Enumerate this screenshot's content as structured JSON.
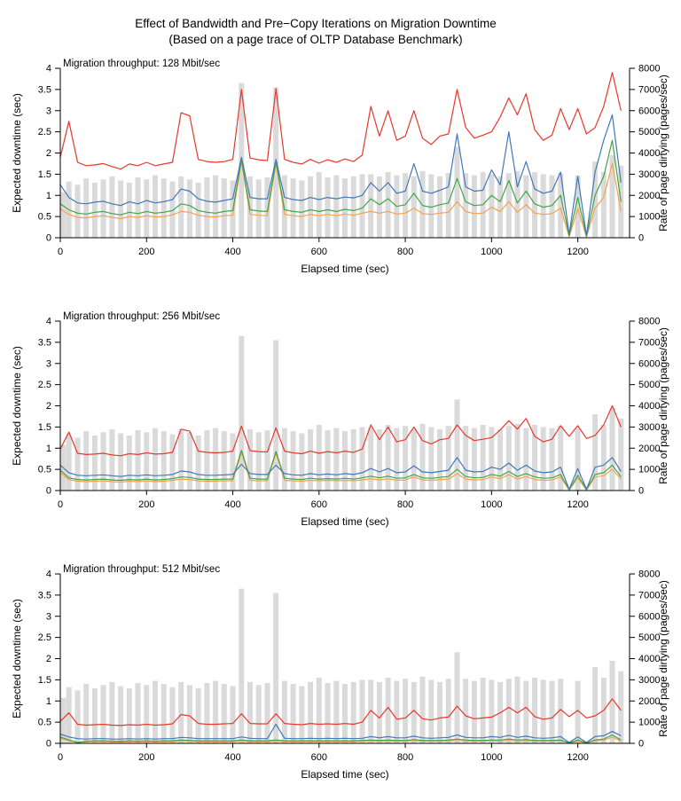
{
  "title": {
    "line1": "Effect of Bandwidth and Pre−Copy Iterations on Migration Downtime",
    "line2": "(Based on a page trace of OLTP Database Benchmark)"
  },
  "colors": {
    "red": "#e8372c",
    "blue": "#4278b6",
    "green": "#41a648",
    "orange": "#f7a14c",
    "bars": "#dadada",
    "axis": "#000000"
  },
  "chart_data": {
    "type": "line+bar",
    "xlabel": "Elapsed time (sec)",
    "ylabel_left": "Expected downtime (sec)",
    "ylabel_right": "Rate of page dirtying (pages/sec)",
    "xlim": [
      0,
      1320
    ],
    "ylim_left": [
      0,
      4
    ],
    "ylim_right": [
      0,
      8000
    ],
    "xticks": [
      0,
      200,
      400,
      600,
      800,
      1000,
      1200
    ],
    "yticks_left": [
      0,
      0.5,
      1,
      1.5,
      2,
      2.5,
      3,
      3.5,
      4
    ],
    "yticks_right": [
      0,
      1000,
      2000,
      3000,
      4000,
      5000,
      6000,
      7000,
      8000
    ],
    "grid": "off",
    "legend": "none",
    "x": [
      0,
      20,
      40,
      60,
      80,
      100,
      120,
      140,
      160,
      180,
      200,
      220,
      240,
      260,
      280,
      300,
      320,
      340,
      360,
      380,
      400,
      420,
      440,
      460,
      480,
      500,
      520,
      540,
      560,
      580,
      600,
      620,
      640,
      660,
      680,
      700,
      720,
      740,
      760,
      780,
      800,
      820,
      840,
      860,
      880,
      900,
      920,
      940,
      960,
      980,
      1000,
      1020,
      1040,
      1060,
      1080,
      1100,
      1120,
      1140,
      1160,
      1180,
      1200,
      1220,
      1240,
      1260,
      1280,
      1300
    ],
    "bars": {
      "name": "page-dirty-rate",
      "axis": "right",
      "values": [
        2150,
        2650,
        2500,
        2800,
        2600,
        2750,
        2900,
        2700,
        2600,
        2850,
        2750,
        2950,
        2800,
        2650,
        2900,
        2750,
        2600,
        2850,
        2950,
        2800,
        2700,
        7300,
        2900,
        2750,
        2850,
        7100,
        2950,
        2800,
        2700,
        2900,
        3100,
        2850,
        2950,
        2800,
        2900,
        3000,
        3000,
        2900,
        3100,
        2950,
        3050,
        2900,
        3150,
        3000,
        2900,
        3050,
        4300,
        3050,
        2950,
        3100,
        3000,
        2900,
        3050,
        3150,
        2950,
        3100,
        3000,
        2950,
        3050,
        0,
        2950,
        0,
        3600,
        3100,
        3900,
        3400
      ]
    },
    "panels": [
      {
        "label": "Migration throughput: 128 Mbit/sec",
        "series": [
          {
            "name": "red",
            "values": [
              1.9,
              2.75,
              1.78,
              1.7,
              1.72,
              1.75,
              1.68,
              1.62,
              1.74,
              1.7,
              1.78,
              1.7,
              1.74,
              1.78,
              2.95,
              2.88,
              1.85,
              1.8,
              1.78,
              1.8,
              1.85,
              3.5,
              1.88,
              1.84,
              1.82,
              3.52,
              1.85,
              1.78,
              1.74,
              1.85,
              1.76,
              1.84,
              1.78,
              1.86,
              1.8,
              1.95,
              3.1,
              2.4,
              3.0,
              2.3,
              2.4,
              3.0,
              2.35,
              2.2,
              2.4,
              2.45,
              3.5,
              2.6,
              2.35,
              2.42,
              2.5,
              2.85,
              3.3,
              2.9,
              3.4,
              2.55,
              2.3,
              2.42,
              3.05,
              2.55,
              3.05,
              2.45,
              2.6,
              3.1,
              3.9,
              3.0
            ]
          },
          {
            "name": "blue",
            "values": [
              1.25,
              0.95,
              0.82,
              0.8,
              0.84,
              0.86,
              0.8,
              0.76,
              0.85,
              0.8,
              0.88,
              0.82,
              0.85,
              0.9,
              1.15,
              1.1,
              0.92,
              0.86,
              0.84,
              0.88,
              0.92,
              1.9,
              0.95,
              0.92,
              0.92,
              1.85,
              0.95,
              0.9,
              0.88,
              0.95,
              0.9,
              0.95,
              0.92,
              0.96,
              0.94,
              1.0,
              1.3,
              1.1,
              1.3,
              1.05,
              1.1,
              1.75,
              1.1,
              1.05,
              1.12,
              1.2,
              2.45,
              1.2,
              1.1,
              1.12,
              1.6,
              1.25,
              2.5,
              1.2,
              1.8,
              1.15,
              1.05,
              1.1,
              1.55,
              0.08,
              1.45,
              0.05,
              1.55,
              2.3,
              2.9,
              1.3
            ]
          },
          {
            "name": "green",
            "values": [
              0.8,
              0.66,
              0.58,
              0.56,
              0.6,
              0.62,
              0.57,
              0.54,
              0.6,
              0.57,
              0.62,
              0.58,
              0.6,
              0.64,
              0.8,
              0.76,
              0.64,
              0.6,
              0.58,
              0.62,
              0.64,
              1.85,
              0.66,
              0.63,
              0.62,
              1.8,
              0.66,
              0.62,
              0.6,
              0.66,
              0.62,
              0.66,
              0.62,
              0.67,
              0.64,
              0.7,
              0.92,
              0.78,
              0.92,
              0.74,
              0.78,
              1.05,
              0.76,
              0.72,
              0.78,
              0.82,
              1.4,
              0.85,
              0.76,
              0.78,
              1.0,
              0.85,
              1.35,
              0.82,
              1.1,
              0.8,
              0.72,
              0.76,
              1.0,
              0.05,
              0.95,
              0.03,
              1.0,
              1.45,
              2.3,
              0.85
            ]
          },
          {
            "name": "orange",
            "values": [
              0.68,
              0.55,
              0.48,
              0.47,
              0.5,
              0.52,
              0.48,
              0.45,
              0.5,
              0.48,
              0.52,
              0.49,
              0.5,
              0.54,
              0.62,
              0.6,
              0.53,
              0.5,
              0.49,
              0.52,
              0.53,
              1.8,
              0.55,
              0.53,
              0.52,
              1.75,
              0.55,
              0.52,
              0.5,
              0.55,
              0.52,
              0.55,
              0.52,
              0.56,
              0.53,
              0.58,
              0.62,
              0.58,
              0.62,
              0.56,
              0.58,
              0.7,
              0.57,
              0.55,
              0.58,
              0.6,
              0.85,
              0.62,
              0.57,
              0.58,
              0.72,
              0.62,
              0.85,
              0.6,
              0.78,
              0.58,
              0.55,
              0.57,
              0.7,
              0.02,
              0.68,
              0.02,
              0.7,
              0.95,
              1.75,
              0.62
            ]
          }
        ]
      },
      {
        "label": "Migration throughput: 256 Mbit/sec",
        "series": [
          {
            "name": "red",
            "values": [
              0.98,
              1.38,
              0.88,
              0.85,
              0.86,
              0.88,
              0.84,
              0.82,
              0.87,
              0.85,
              0.89,
              0.86,
              0.87,
              0.9,
              1.45,
              1.4,
              0.93,
              0.9,
              0.89,
              0.9,
              0.93,
              1.52,
              0.94,
              0.92,
              0.91,
              1.48,
              0.93,
              0.89,
              0.87,
              0.93,
              0.88,
              0.92,
              0.89,
              0.93,
              0.9,
              0.98,
              1.55,
              1.2,
              1.5,
              1.15,
              1.2,
              1.5,
              1.18,
              1.1,
              1.2,
              1.23,
              1.55,
              1.3,
              1.18,
              1.21,
              1.25,
              1.43,
              1.65,
              1.45,
              1.7,
              1.28,
              1.15,
              1.21,
              1.53,
              1.28,
              1.53,
              1.23,
              1.3,
              1.55,
              2.0,
              1.5
            ]
          },
          {
            "name": "blue",
            "values": [
              0.6,
              0.42,
              0.36,
              0.35,
              0.36,
              0.37,
              0.35,
              0.33,
              0.36,
              0.35,
              0.37,
              0.35,
              0.36,
              0.38,
              0.46,
              0.44,
              0.38,
              0.36,
              0.36,
              0.37,
              0.38,
              0.62,
              0.4,
              0.38,
              0.38,
              0.6,
              0.4,
              0.37,
              0.36,
              0.4,
              0.37,
              0.39,
              0.37,
              0.4,
              0.38,
              0.42,
              0.52,
              0.44,
              0.52,
              0.42,
              0.44,
              0.58,
              0.44,
              0.42,
              0.45,
              0.48,
              0.78,
              0.48,
              0.44,
              0.45,
              0.55,
              0.5,
              0.65,
              0.48,
              0.6,
              0.46,
              0.42,
              0.44,
              0.55,
              0.03,
              0.52,
              0.03,
              0.55,
              0.6,
              0.78,
              0.45
            ]
          },
          {
            "name": "green",
            "values": [
              0.48,
              0.3,
              0.26,
              0.25,
              0.26,
              0.27,
              0.25,
              0.24,
              0.26,
              0.25,
              0.27,
              0.25,
              0.26,
              0.28,
              0.32,
              0.31,
              0.27,
              0.26,
              0.26,
              0.27,
              0.27,
              0.95,
              0.29,
              0.27,
              0.27,
              0.92,
              0.29,
              0.27,
              0.26,
              0.29,
              0.27,
              0.28,
              0.27,
              0.29,
              0.27,
              0.3,
              0.34,
              0.3,
              0.34,
              0.29,
              0.3,
              0.38,
              0.3,
              0.29,
              0.31,
              0.33,
              0.5,
              0.33,
              0.3,
              0.31,
              0.38,
              0.34,
              0.45,
              0.33,
              0.4,
              0.32,
              0.29,
              0.3,
              0.38,
              0.02,
              0.36,
              0.02,
              0.38,
              0.42,
              0.6,
              0.32
            ]
          },
          {
            "name": "orange",
            "values": [
              0.42,
              0.26,
              0.22,
              0.21,
              0.22,
              0.23,
              0.21,
              0.2,
              0.22,
              0.21,
              0.23,
              0.21,
              0.22,
              0.24,
              0.27,
              0.26,
              0.23,
              0.22,
              0.22,
              0.23,
              0.23,
              0.9,
              0.24,
              0.23,
              0.23,
              0.88,
              0.24,
              0.23,
              0.22,
              0.24,
              0.23,
              0.24,
              0.23,
              0.24,
              0.23,
              0.25,
              0.28,
              0.25,
              0.28,
              0.24,
              0.25,
              0.32,
              0.25,
              0.24,
              0.26,
              0.27,
              0.4,
              0.27,
              0.25,
              0.26,
              0.32,
              0.28,
              0.38,
              0.27,
              0.33,
              0.26,
              0.24,
              0.25,
              0.32,
              0.01,
              0.3,
              0.01,
              0.32,
              0.35,
              0.5,
              0.27
            ]
          }
        ]
      },
      {
        "label": "Migration throughput: 512 Mbit/sec",
        "series": [
          {
            "name": "red",
            "values": [
              0.52,
              0.72,
              0.45,
              0.43,
              0.44,
              0.45,
              0.43,
              0.42,
              0.44,
              0.43,
              0.45,
              0.43,
              0.44,
              0.46,
              0.68,
              0.65,
              0.47,
              0.45,
              0.45,
              0.46,
              0.47,
              0.7,
              0.47,
              0.46,
              0.46,
              0.7,
              0.47,
              0.45,
              0.44,
              0.47,
              0.45,
              0.46,
              0.45,
              0.47,
              0.45,
              0.5,
              0.78,
              0.6,
              0.85,
              0.57,
              0.6,
              0.78,
              0.58,
              0.55,
              0.6,
              0.62,
              0.88,
              0.65,
              0.58,
              0.6,
              0.62,
              0.72,
              0.85,
              0.72,
              0.85,
              0.63,
              0.57,
              0.6,
              0.8,
              0.63,
              0.78,
              0.6,
              0.65,
              0.78,
              1.05,
              0.78
            ]
          },
          {
            "name": "blue",
            "values": [
              0.22,
              0.15,
              0.11,
              0.1,
              0.11,
              0.11,
              0.1,
              0.1,
              0.11,
              0.1,
              0.11,
              0.1,
              0.11,
              0.11,
              0.14,
              0.13,
              0.11,
              0.11,
              0.11,
              0.11,
              0.11,
              0.15,
              0.12,
              0.11,
              0.11,
              0.45,
              0.12,
              0.11,
              0.11,
              0.12,
              0.11,
              0.12,
              0.11,
              0.12,
              0.11,
              0.12,
              0.16,
              0.13,
              0.16,
              0.13,
              0.13,
              0.17,
              0.13,
              0.12,
              0.13,
              0.14,
              0.2,
              0.14,
              0.13,
              0.13,
              0.16,
              0.14,
              0.19,
              0.14,
              0.17,
              0.13,
              0.12,
              0.13,
              0.16,
              0.02,
              0.15,
              0.02,
              0.16,
              0.18,
              0.28,
              0.18
            ]
          },
          {
            "name": "green",
            "values": [
              0.15,
              0.08,
              0.02,
              0.05,
              0.06,
              0.06,
              0.05,
              0.05,
              0.06,
              0.05,
              0.06,
              0.05,
              0.06,
              0.06,
              0.08,
              0.07,
              0.06,
              0.06,
              0.06,
              0.06,
              0.06,
              0.08,
              0.06,
              0.06,
              0.06,
              0.08,
              0.06,
              0.06,
              0.06,
              0.06,
              0.06,
              0.06,
              0.06,
              0.06,
              0.06,
              0.07,
              0.08,
              0.07,
              0.08,
              0.07,
              0.07,
              0.09,
              0.07,
              0.07,
              0.07,
              0.08,
              0.1,
              0.08,
              0.07,
              0.07,
              0.08,
              0.08,
              0.1,
              0.08,
              0.09,
              0.07,
              0.07,
              0.07,
              0.08,
              0.01,
              0.08,
              0.01,
              0.08,
              0.1,
              0.2,
              0.08
            ]
          },
          {
            "name": "orange",
            "values": [
              0.12,
              0.06,
              0.02,
              0.04,
              0.04,
              0.04,
              0.04,
              0.03,
              0.04,
              0.04,
              0.04,
              0.04,
              0.04,
              0.04,
              0.05,
              0.05,
              0.04,
              0.04,
              0.04,
              0.04,
              0.04,
              0.05,
              0.04,
              0.04,
              0.04,
              0.05,
              0.04,
              0.04,
              0.04,
              0.04,
              0.04,
              0.04,
              0.04,
              0.04,
              0.04,
              0.05,
              0.05,
              0.05,
              0.05,
              0.05,
              0.05,
              0.06,
              0.05,
              0.05,
              0.05,
              0.05,
              0.07,
              0.05,
              0.05,
              0.05,
              0.06,
              0.05,
              0.07,
              0.05,
              0.06,
              0.05,
              0.05,
              0.05,
              0.06,
              0.01,
              0.05,
              0.01,
              0.06,
              0.07,
              0.15,
              0.05
            ]
          }
        ]
      }
    ]
  }
}
